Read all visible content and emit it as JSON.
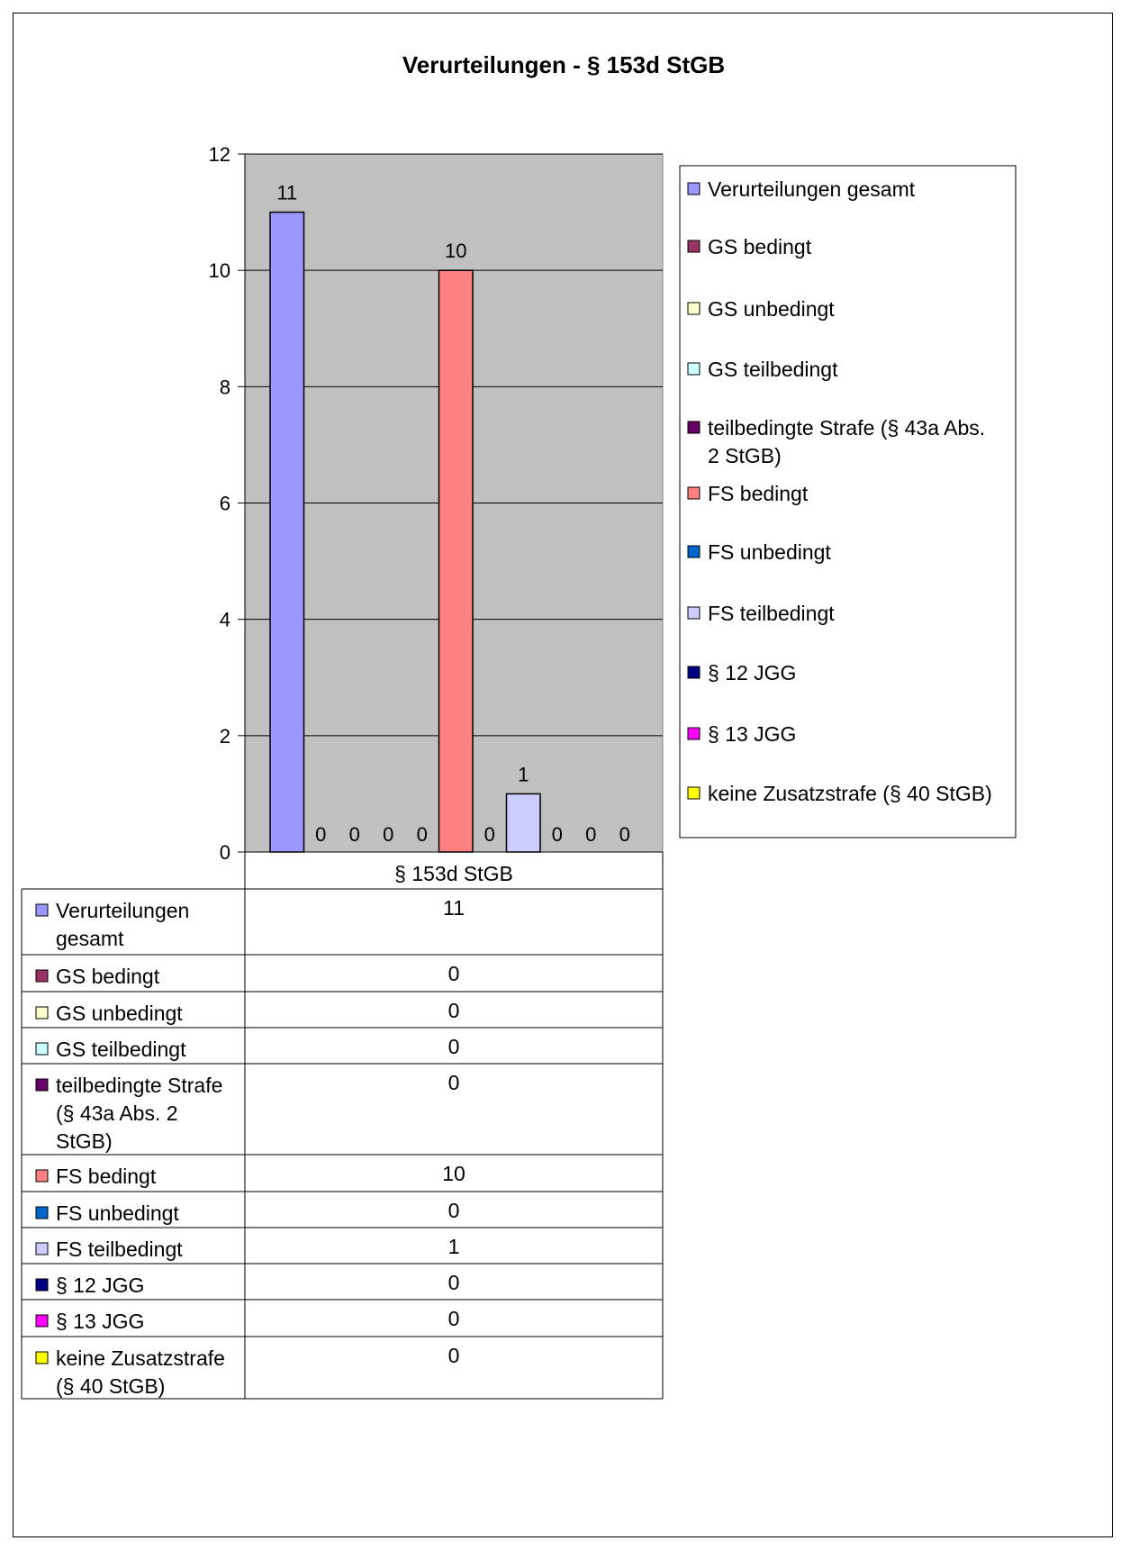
{
  "chart_data": {
    "type": "bar",
    "title": "Verurteilungen - § 153d StGB",
    "categories": [
      "§ 153d StGB"
    ],
    "ylim": [
      0,
      12
    ],
    "yticks": [
      0,
      2,
      4,
      6,
      8,
      10,
      12
    ],
    "grid": true,
    "legend_position": "right",
    "series": [
      {
        "name": "Verurteilungen gesamt",
        "table_label": [
          "Verurteilungen",
          "gesamt"
        ],
        "legend_label": [
          "Verurteilungen gesamt"
        ],
        "values": [
          11
        ],
        "color": "#9999ff"
      },
      {
        "name": "GS bedingt",
        "table_label": [
          "GS bedingt"
        ],
        "legend_label": [
          "GS bedingt"
        ],
        "values": [
          0
        ],
        "color": "#993366"
      },
      {
        "name": "GS unbedingt",
        "table_label": [
          "GS unbedingt"
        ],
        "legend_label": [
          "GS unbedingt"
        ],
        "values": [
          0
        ],
        "color": "#ffffcc"
      },
      {
        "name": "GS teilbedingt",
        "table_label": [
          "GS teilbedingt"
        ],
        "legend_label": [
          "GS teilbedingt"
        ],
        "values": [
          0
        ],
        "color": "#ccffff"
      },
      {
        "name": "teilbedingte Strafe (§ 43a Abs. 2 StGB)",
        "table_label": [
          "teilbedingte Strafe",
          "(§ 43a Abs. 2",
          "StGB)"
        ],
        "legend_label": [
          "teilbedingte Strafe (§ 43a Abs.",
          "2 StGB)"
        ],
        "values": [
          0
        ],
        "color": "#660066"
      },
      {
        "name": "FS bedingt",
        "table_label": [
          "FS bedingt"
        ],
        "legend_label": [
          "FS bedingt"
        ],
        "values": [
          10
        ],
        "color": "#ff8080"
      },
      {
        "name": "FS unbedingt",
        "table_label": [
          "FS unbedingt"
        ],
        "legend_label": [
          "FS unbedingt"
        ],
        "values": [
          0
        ],
        "color": "#0066cc"
      },
      {
        "name": "FS teilbedingt",
        "table_label": [
          "FS teilbedingt"
        ],
        "legend_label": [
          "FS teilbedingt"
        ],
        "values": [
          1
        ],
        "color": "#ccccff"
      },
      {
        "name": "§ 12 JGG",
        "table_label": [
          "§ 12 JGG"
        ],
        "legend_label": [
          "§ 12 JGG"
        ],
        "values": [
          0
        ],
        "color": "#000080"
      },
      {
        "name": "§ 13 JGG",
        "table_label": [
          "§ 13 JGG"
        ],
        "legend_label": [
          "§ 13 JGG"
        ],
        "values": [
          0
        ],
        "color": "#ff00ff"
      },
      {
        "name": "keine Zusatzstrafe (§ 40 StGB)",
        "table_label": [
          "keine Zusatzstrafe",
          "(§ 40 StGB)"
        ],
        "legend_label": [
          "keine Zusatzstrafe (§ 40 StGB)"
        ],
        "values": [
          0
        ],
        "color": "#ffff00"
      }
    ],
    "plot_background": "#c0c0c0"
  }
}
